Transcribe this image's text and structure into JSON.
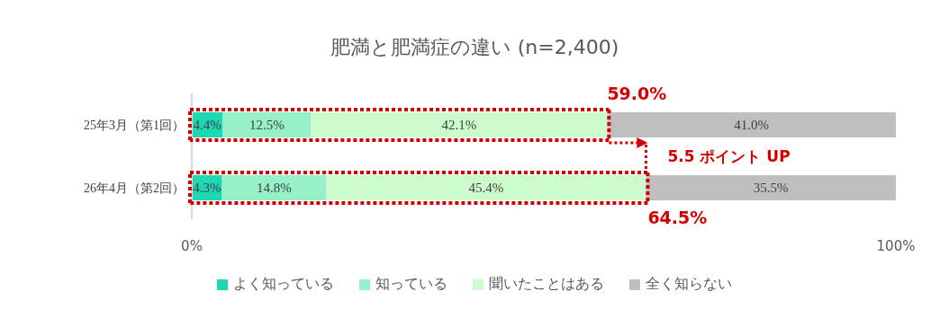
{
  "chart_data": {
    "type": "bar",
    "orientation": "horizontal",
    "stacked": true,
    "title": "肥満と肥満症の違い (n=2,400)",
    "categories": [
      "25年3月（第1回）",
      "26年4月（第2回）"
    ],
    "series": [
      {
        "name": "よく知っている",
        "color": "#1ed8b4",
        "values": [
          4.4,
          4.3
        ],
        "value_labels": [
          "4.4%",
          "4.3%"
        ]
      },
      {
        "name": "知っている",
        "color": "#96f0c8",
        "values": [
          12.5,
          14.8
        ],
        "value_labels": [
          "12.5%",
          "14.8%"
        ]
      },
      {
        "name": "聞いたことはある",
        "color": "#ccfccc",
        "values": [
          42.1,
          45.4
        ],
        "value_labels": [
          "42.1%",
          "45.4%"
        ]
      },
      {
        "name": "全く知らない",
        "color": "#bfbfbf",
        "values": [
          41.0,
          35.5
        ],
        "value_labels": [
          "41.0%",
          "35.5%"
        ]
      }
    ],
    "xlim": [
      0,
      100
    ],
    "xticks": [
      {
        "value": 0,
        "label": "0%"
      },
      {
        "value": 100,
        "label": "100%"
      }
    ],
    "grid": false,
    "legend": "bottom",
    "annotations": [
      {
        "text": "59.0%",
        "x": 59.0,
        "y": "25年3月（第1回）"
      },
      {
        "text": "64.5%",
        "x": 64.5,
        "y": "26年4月（第2回）"
      },
      "5.5 ポイント UP"
    ]
  }
}
